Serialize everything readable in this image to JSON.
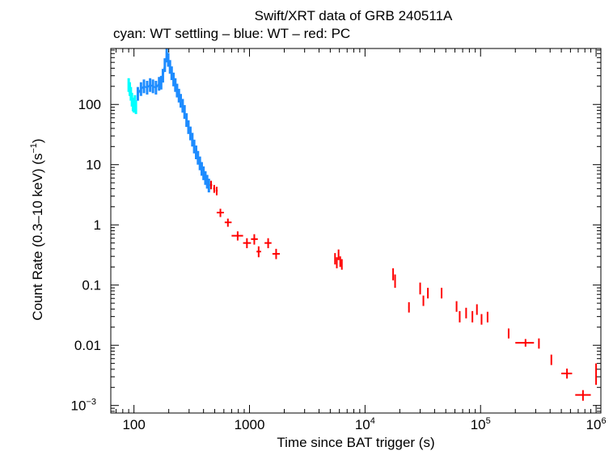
{
  "chart_data": {
    "type": "scatter",
    "title": "Swift/XRT data of GRB 240511A",
    "subtitle": "cyan: WT settling – blue: WT – red: PC",
    "xlabel": "Time since BAT trigger (s)",
    "ylabel": "Count Rate (0.3–10 keV) (s",
    "ylabel_sup": "−1",
    "ylabel_close": ")",
    "xscale": "log",
    "yscale": "log",
    "xlim": [
      63,
      1100000
    ],
    "ylim": [
      0.00075,
      850
    ],
    "x_ticks": [
      {
        "value": 100,
        "base": "100"
      },
      {
        "value": 1000,
        "base": "1000"
      },
      {
        "value": 10000,
        "base": "10",
        "exp": "4"
      },
      {
        "value": 100000,
        "base": "10",
        "exp": "5"
      },
      {
        "value": 1000000,
        "base": "10",
        "exp": "6"
      }
    ],
    "y_ticks": [
      {
        "value": 100,
        "base": "100"
      },
      {
        "value": 10,
        "base": "10"
      },
      {
        "value": 1,
        "base": "1"
      },
      {
        "value": 0.1,
        "base": "0.1"
      },
      {
        "value": 0.01,
        "base": "0.01"
      },
      {
        "value": 0.001,
        "base": "10",
        "exp": "−3"
      }
    ],
    "colors": {
      "wt_settling": "#00ffff",
      "wt": "#1e8cff",
      "pc": "#ff0000",
      "axis": "#000000"
    },
    "series": [
      {
        "name": "WT settling",
        "color_key": "wt_settling",
        "points": [
          [
            90,
            210
          ],
          [
            92,
            180
          ],
          [
            94,
            150
          ],
          [
            96,
            120
          ],
          [
            98,
            100
          ],
          [
            100,
            95
          ],
          [
            102,
            110
          ],
          [
            104,
            90
          ]
        ]
      },
      {
        "name": "WT",
        "color_key": "wt",
        "points": [
          [
            108,
            150
          ],
          [
            115,
            180
          ],
          [
            122,
            200
          ],
          [
            130,
            190
          ],
          [
            138,
            210
          ],
          [
            146,
            200
          ],
          [
            155,
            190
          ],
          [
            165,
            220
          ],
          [
            172,
            230
          ],
          [
            178,
            300
          ],
          [
            185,
            450
          ],
          [
            192,
            650
          ],
          [
            198,
            550
          ],
          [
            205,
            420
          ],
          [
            212,
            330
          ],
          [
            220,
            260
          ],
          [
            228,
            210
          ],
          [
            236,
            170
          ],
          [
            245,
            140
          ],
          [
            254,
            115
          ],
          [
            264,
            95
          ],
          [
            274,
            75
          ],
          [
            285,
            55
          ],
          [
            296,
            42
          ],
          [
            308,
            33
          ],
          [
            320,
            26
          ],
          [
            332,
            20
          ],
          [
            345,
            16
          ],
          [
            358,
            13
          ],
          [
            372,
            10.5
          ],
          [
            386,
            8.5
          ],
          [
            400,
            7.2
          ],
          [
            415,
            6
          ],
          [
            430,
            5.2
          ],
          [
            445,
            4.5
          ]
        ]
      },
      {
        "name": "PC",
        "color_key": "pc",
        "points": [
          [
            465,
            4.6,
            [
              455,
              475
            ],
            [
              3.9,
              5.4
            ]
          ],
          [
            495,
            4.0,
            [
              485,
              505
            ],
            [
              3.4,
              4.6
            ]
          ],
          [
            520,
            3.7,
            [
              510,
              530
            ],
            [
              3.1,
              4.3
            ]
          ],
          [
            560,
            1.6,
            [
              520,
              600
            ],
            [
              1.35,
              1.85
            ]
          ],
          [
            650,
            1.1,
            [
              610,
              700
            ],
            [
              0.93,
              1.27
            ]
          ],
          [
            790,
            0.66,
            [
              700,
              880
            ],
            [
              0.55,
              0.78
            ]
          ],
          [
            950,
            0.5,
            [
              880,
              1030
            ],
            [
              0.41,
              0.6
            ]
          ],
          [
            1100,
            0.58,
            [
              1030,
              1180
            ],
            [
              0.47,
              0.7
            ]
          ],
          [
            1200,
            0.36,
            [
              1150,
              1260
            ],
            [
              0.29,
              0.44
            ]
          ],
          [
            1450,
            0.5,
            [
              1350,
              1550
            ],
            [
              0.41,
              0.6
            ]
          ],
          [
            1700,
            0.33,
            [
              1580,
              1830
            ],
            [
              0.27,
              0.4
            ]
          ],
          [
            5500,
            0.28,
            [
              5450,
              5550
            ],
            [
              0.22,
              0.34
            ]
          ],
          [
            5700,
            0.24,
            [
              5650,
              5750
            ],
            [
              0.19,
              0.29
            ]
          ],
          [
            5900,
            0.32,
            [
              5850,
              5950
            ],
            [
              0.26,
              0.39
            ]
          ],
          [
            6100,
            0.25,
            [
              6050,
              6150
            ],
            [
              0.2,
              0.3
            ]
          ],
          [
            6300,
            0.22,
            [
              6250,
              6350
            ],
            [
              0.18,
              0.27
            ]
          ],
          [
            17500,
            0.16,
            [
              17400,
              17600
            ],
            [
              0.12,
              0.19
            ]
          ],
          [
            18200,
            0.12,
            [
              18100,
              18300
            ],
            [
              0.09,
              0.15
            ]
          ],
          [
            24000,
            0.043,
            [
              23700,
              24300
            ],
            [
              0.035,
              0.052
            ]
          ],
          [
            30000,
            0.09,
            [
              29700,
              30300
            ],
            [
              0.07,
              0.11
            ]
          ],
          [
            32000,
            0.055,
            [
              31700,
              32300
            ],
            [
              0.045,
              0.067
            ]
          ],
          [
            35000,
            0.075,
            [
              34700,
              35300
            ],
            [
              0.06,
              0.09
            ]
          ],
          [
            46000,
            0.075,
            [
              45600,
              46400
            ],
            [
              0.06,
              0.09
            ]
          ],
          [
            62000,
            0.045,
            [
              61500,
              62500
            ],
            [
              0.036,
              0.054
            ]
          ],
          [
            66000,
            0.03,
            [
              65500,
              66500
            ],
            [
              0.024,
              0.037
            ]
          ],
          [
            75000,
            0.035,
            [
              74500,
              75500
            ],
            [
              0.028,
              0.042
            ]
          ],
          [
            85000,
            0.03,
            [
              84500,
              85500
            ],
            [
              0.024,
              0.037
            ]
          ],
          [
            93000,
            0.04,
            [
              92500,
              93500
            ],
            [
              0.032,
              0.048
            ]
          ],
          [
            102000,
            0.027,
            [
              101000,
              103000
            ],
            [
              0.022,
              0.033
            ]
          ],
          [
            115000,
            0.03,
            [
              114000,
              116000
            ],
            [
              0.024,
              0.036
            ]
          ],
          [
            175000,
            0.016,
            [
              174000,
              176000
            ],
            [
              0.013,
              0.019
            ]
          ],
          [
            245000,
            0.011,
            [
              200000,
              290000
            ],
            [
              0.0095,
              0.0127
            ]
          ],
          [
            320000,
            0.011,
            [
              318000,
              322000
            ],
            [
              0.0088,
              0.013
            ]
          ],
          [
            410000,
            0.0058,
            [
              405000,
              415000
            ],
            [
              0.0047,
              0.007
            ]
          ],
          [
            560000,
            0.0034,
            [
              500000,
              620000
            ],
            [
              0.0028,
              0.0041
            ]
          ],
          [
            770000,
            0.0015,
            [
              660000,
              900000
            ],
            [
              0.0012,
              0.0018
            ]
          ],
          [
            1000000,
            0.0035,
            [
              995000,
              1005000
            ],
            [
              0.0022,
              0.005
            ]
          ]
        ]
      }
    ]
  }
}
